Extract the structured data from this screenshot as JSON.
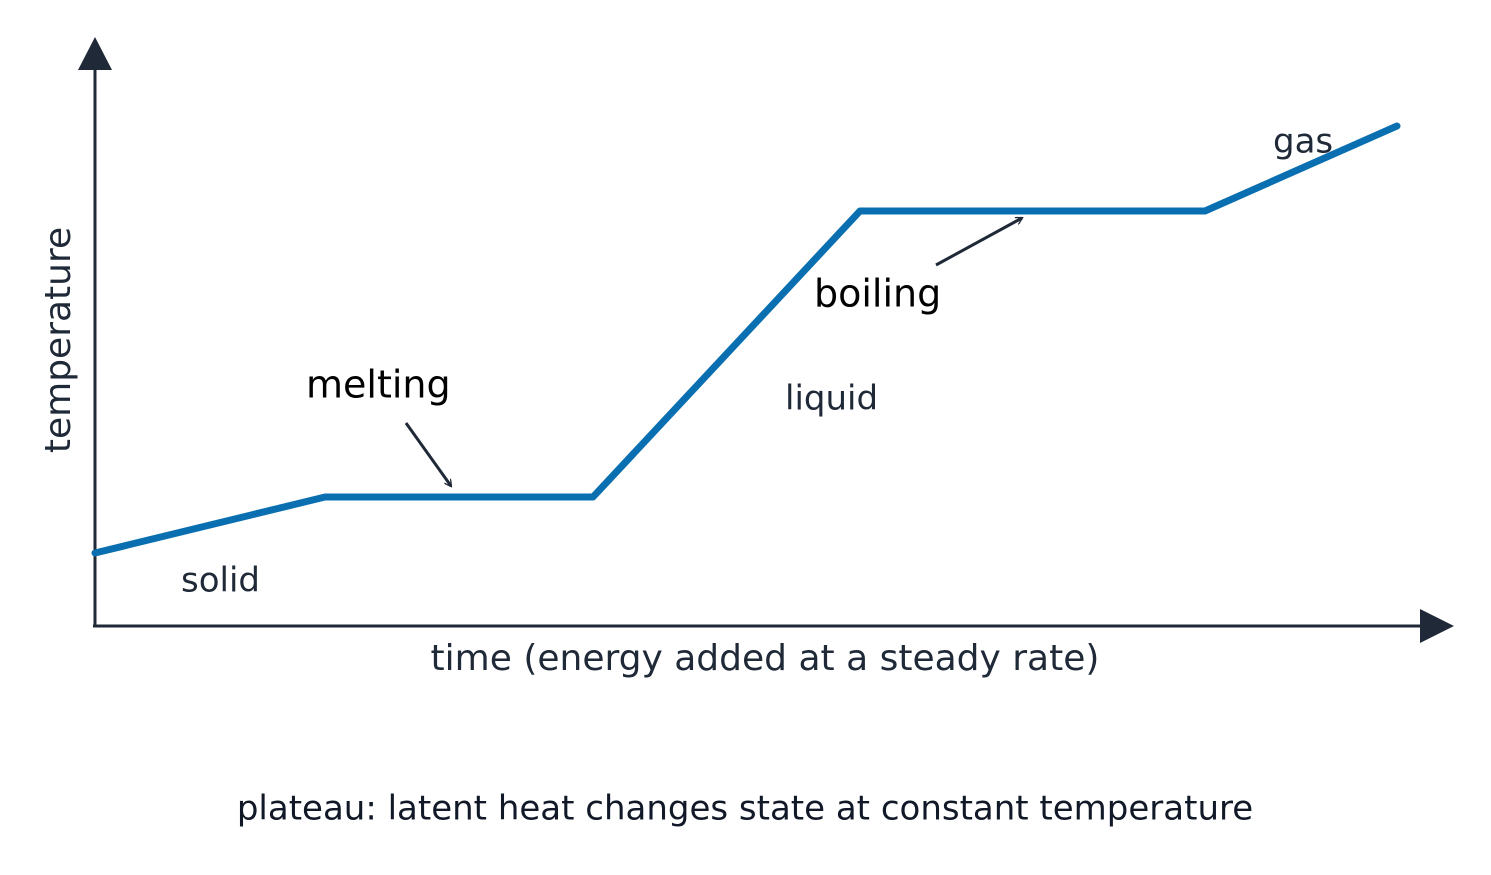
{
  "axes": {
    "y_label": "temperature",
    "x_label": "time (energy added at a steady rate)"
  },
  "phases": {
    "solid": "solid",
    "liquid": "liquid",
    "gas": "gas"
  },
  "annotations": {
    "melting": "melting",
    "boiling": "boiling"
  },
  "caption": "plateau: latent heat changes state at constant temperature"
}
